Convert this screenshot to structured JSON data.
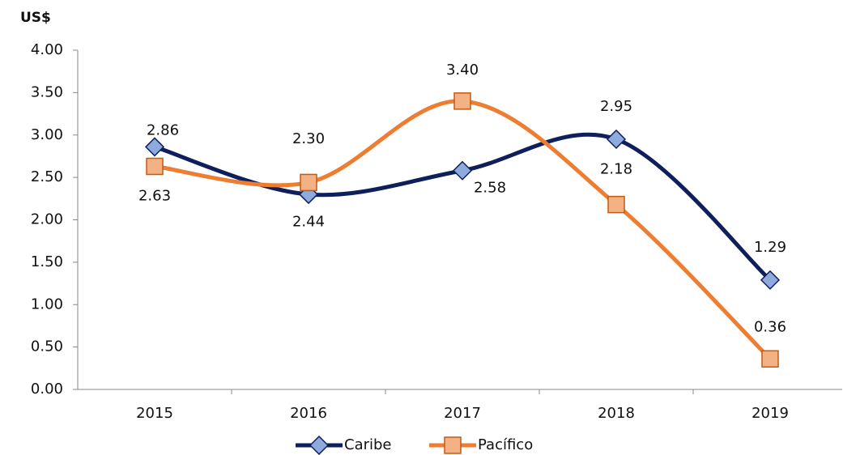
{
  "chart_data": {
    "type": "line",
    "y_label": "US$",
    "categories": [
      "2015",
      "2016",
      "2017",
      "2018",
      "2019"
    ],
    "series": [
      {
        "name": "Caribe",
        "color": "#0f1f5c",
        "marker_color": "#8faadc",
        "marker": "diamond",
        "values": [
          2.86,
          2.3,
          2.58,
          2.95,
          1.29
        ],
        "value_labels": [
          "2.86",
          "2.30",
          "2.58",
          "2.95",
          "1.29"
        ]
      },
      {
        "name": "Pacífico",
        "color": "#ed7d31",
        "marker_color": "#f4b183",
        "marker": "square",
        "values": [
          2.63,
          2.44,
          3.4,
          2.18,
          0.36
        ],
        "value_labels": [
          "2.63",
          "2.44",
          "3.40",
          "2.18",
          "0.36"
        ]
      }
    ],
    "ylim": [
      0,
      4
    ],
    "yticks": [
      {
        "value": 0,
        "label": "0.00"
      },
      {
        "value": 0.5,
        "label": "0.50"
      },
      {
        "value": 1,
        "label": "1.00"
      },
      {
        "value": 1.5,
        "label": "1.50"
      },
      {
        "value": 2,
        "label": "2.00"
      },
      {
        "value": 2.5,
        "label": "2.50"
      },
      {
        "value": 3,
        "label": "3.00"
      },
      {
        "value": 3.5,
        "label": "3.50"
      },
      {
        "value": 4,
        "label": "4.00"
      }
    ],
    "grid": false,
    "smooth": true,
    "legend": "bottom"
  }
}
